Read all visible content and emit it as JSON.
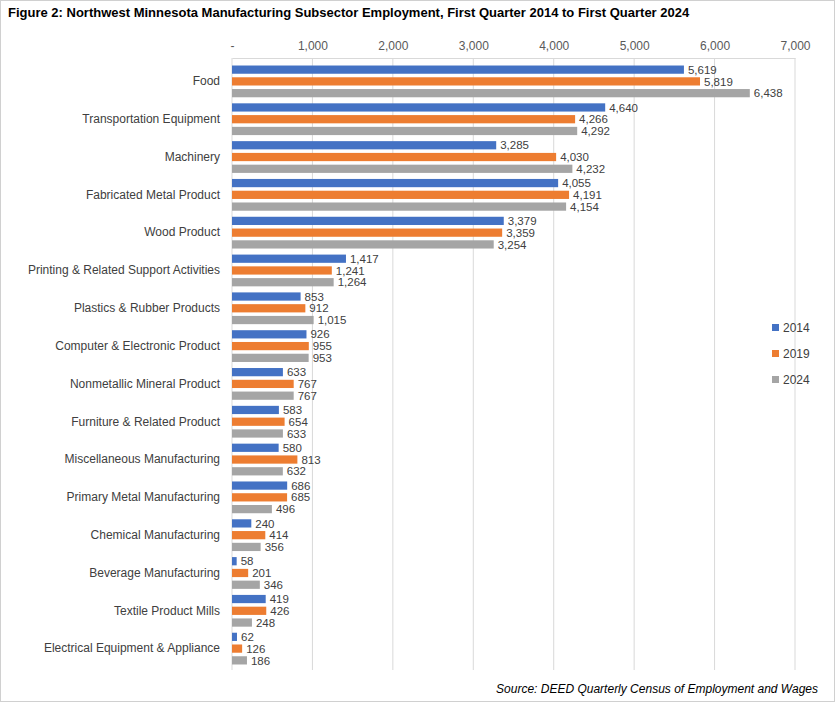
{
  "chart_data": {
    "type": "bar",
    "orientation": "horizontal",
    "title": "Figure 2: Northwest Minnesota Manufacturing Subsector Employment, First Quarter 2014 to First Quarter 2024",
    "source": "Source: DEED Quarterly Census of Employment and Wages",
    "categories": [
      "Food",
      "Transportation Equipment",
      "Machinery",
      "Fabricated Metal Product",
      "Wood Product",
      "Printing & Related Support Activities",
      "Plastics & Rubber Products",
      "Computer & Electronic Product",
      "Nonmetallic Mineral Product",
      "Furniture & Related Product",
      "Miscellaneous Manufacturing",
      "Primary Metal Manufacturing",
      "Chemical Manufacturing",
      "Beverage Manufacturing",
      "Textile Product Mills",
      "Electrical Equipment & Appliance"
    ],
    "series": [
      {
        "name": "2014",
        "color": "#4472c4",
        "values": [
          5619,
          4640,
          3285,
          4055,
          3379,
          1417,
          853,
          926,
          633,
          583,
          580,
          686,
          240,
          58,
          419,
          62
        ],
        "value_labels": [
          "5,619",
          "4,640",
          "3,285",
          "4,055",
          "3,379",
          "1,417",
          "853",
          "926",
          "633",
          "583",
          "580",
          "686",
          "240",
          "58",
          "419",
          "62"
        ]
      },
      {
        "name": "2019",
        "color": "#ed7d31",
        "values": [
          5819,
          4266,
          4030,
          4191,
          3359,
          1241,
          912,
          955,
          767,
          654,
          813,
          685,
          414,
          201,
          426,
          126
        ],
        "value_labels": [
          "5,819",
          "4,266",
          "4,030",
          "4,191",
          "3,359",
          "1,241",
          "912",
          "955",
          "767",
          "654",
          "813",
          "685",
          "414",
          "201",
          "426",
          "126"
        ]
      },
      {
        "name": "2024",
        "color": "#a5a5a5",
        "values": [
          6438,
          4292,
          4232,
          4154,
          3254,
          1264,
          1015,
          953,
          767,
          633,
          632,
          496,
          356,
          346,
          248,
          186
        ],
        "value_labels": [
          "6,438",
          "4,292",
          "4,232",
          "4,154",
          "3,254",
          "1,264",
          "1,015",
          "953",
          "767",
          "633",
          "632",
          "496",
          "356",
          "346",
          "248",
          "186"
        ]
      }
    ],
    "xlim": [
      0,
      7000
    ],
    "xticks": [
      {
        "value": 0,
        "label": "-"
      },
      {
        "value": 1000,
        "label": "1,000"
      },
      {
        "value": 2000,
        "label": "2,000"
      },
      {
        "value": 3000,
        "label": "3,000"
      },
      {
        "value": 4000,
        "label": "4,000"
      },
      {
        "value": 5000,
        "label": "5,000"
      },
      {
        "value": 6000,
        "label": "6,000"
      },
      {
        "value": 7000,
        "label": "7,000"
      }
    ],
    "grid": true,
    "legend": "right",
    "data_labels": true
  }
}
